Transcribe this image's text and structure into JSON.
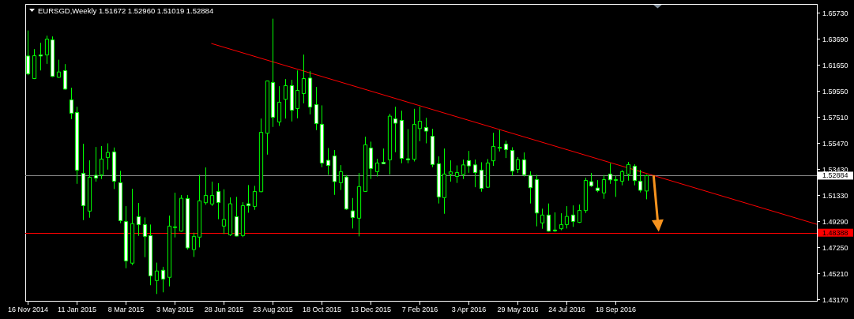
{
  "chart_data": {
    "type": "candlestick",
    "title": "EURSGD,Weekly 1.51672 1.52960 1.51019 1.52884",
    "x": [
      "2014-11-16",
      "2014-11-23",
      "2014-11-30",
      "2014-12-07",
      "2014-12-14",
      "2014-12-21",
      "2014-12-28",
      "2015-01-04",
      "2015-01-11",
      "2015-01-18",
      "2015-01-25",
      "2015-02-01",
      "2015-02-08",
      "2015-02-15",
      "2015-02-22",
      "2015-03-01",
      "2015-03-08",
      "2015-03-15",
      "2015-03-22",
      "2015-03-29",
      "2015-04-05",
      "2015-04-12",
      "2015-04-19",
      "2015-04-26",
      "2015-05-03",
      "2015-05-10",
      "2015-05-17",
      "2015-05-24",
      "2015-05-31",
      "2015-06-07",
      "2015-06-14",
      "2015-06-21",
      "2015-06-28",
      "2015-07-05",
      "2015-07-12",
      "2015-07-19",
      "2015-07-26",
      "2015-08-02",
      "2015-08-09",
      "2015-08-16",
      "2015-08-23",
      "2015-08-30",
      "2015-09-06",
      "2015-09-13",
      "2015-09-20",
      "2015-09-27",
      "2015-10-04",
      "2015-10-11",
      "2015-10-18",
      "2015-10-25",
      "2015-11-01",
      "2015-11-08",
      "2015-11-15",
      "2015-11-22",
      "2015-11-29",
      "2015-12-06",
      "2015-12-13",
      "2015-12-20",
      "2015-12-27",
      "2016-01-03",
      "2016-01-10",
      "2016-01-17",
      "2016-01-24",
      "2016-01-31",
      "2016-02-07",
      "2016-02-14",
      "2016-02-21",
      "2016-02-28",
      "2016-03-06",
      "2016-03-13",
      "2016-03-20",
      "2016-03-27",
      "2016-04-03",
      "2016-04-10",
      "2016-04-17",
      "2016-04-24",
      "2016-05-01",
      "2016-05-08",
      "2016-05-15",
      "2016-05-22",
      "2016-05-29",
      "2016-06-05",
      "2016-06-12",
      "2016-06-19",
      "2016-06-26",
      "2016-07-03",
      "2016-07-10",
      "2016-07-17",
      "2016-07-24",
      "2016-07-31",
      "2016-08-07",
      "2016-08-14",
      "2016-08-21",
      "2016-08-28",
      "2016-09-04",
      "2016-09-11",
      "2016-09-18",
      "2016-09-25",
      "2016-10-02",
      "2016-10-09",
      "2016-10-16",
      "2016-10-23"
    ],
    "ohlc": [
      [
        1.6231,
        1.6432,
        1.608,
        1.609
      ],
      [
        1.6053,
        1.6285,
        1.6049,
        1.6233
      ],
      [
        1.6239,
        1.6335,
        1.6117,
        1.6231
      ],
      [
        1.6239,
        1.6391,
        1.6169,
        1.6364
      ],
      [
        1.6358,
        1.6385,
        1.6065,
        1.607
      ],
      [
        1.6063,
        1.6202,
        1.6059,
        1.6105
      ],
      [
        1.6115,
        1.6167,
        1.5966,
        1.597
      ],
      [
        1.5885,
        1.5981,
        1.5734,
        1.578
      ],
      [
        1.5786,
        1.5831,
        1.5224,
        1.5332
      ],
      [
        1.5307,
        1.5539,
        1.4938,
        1.5052
      ],
      [
        1.5009,
        1.5409,
        1.4957,
        1.5276
      ],
      [
        1.5291,
        1.5514,
        1.5241,
        1.527
      ],
      [
        1.5293,
        1.5521,
        1.5262,
        1.5419
      ],
      [
        1.5432,
        1.5543,
        1.5336,
        1.5471
      ],
      [
        1.5475,
        1.551,
        1.5183,
        1.5245
      ],
      [
        1.5233,
        1.5326,
        1.4914,
        1.4934
      ],
      [
        1.4926,
        1.5048,
        1.4559,
        1.4617
      ],
      [
        1.4599,
        1.5185,
        1.4584,
        1.491
      ],
      [
        1.4965,
        1.5073,
        1.4814,
        1.4903
      ],
      [
        1.4903,
        1.4959,
        1.4646,
        1.481
      ],
      [
        1.4816,
        1.4903,
        1.4425,
        1.4499
      ],
      [
        1.4462,
        1.4603,
        1.4356,
        1.4537
      ],
      [
        1.4543,
        1.457,
        1.4369,
        1.4474
      ],
      [
        1.4487,
        1.4974,
        1.4416,
        1.4891
      ],
      [
        1.488,
        1.5154,
        1.4802,
        1.4885
      ],
      [
        1.4851,
        1.5135,
        1.4847,
        1.511
      ],
      [
        1.5108,
        1.5135,
        1.4706,
        1.4719
      ],
      [
        1.4706,
        1.4839,
        1.4648,
        1.481
      ],
      [
        1.4804,
        1.5295,
        1.4723,
        1.509
      ],
      [
        1.5075,
        1.5353,
        1.5059,
        1.5133
      ],
      [
        1.5065,
        1.5241,
        1.505,
        1.5133
      ],
      [
        1.5164,
        1.5229,
        1.4945,
        1.5077
      ],
      [
        1.4891,
        1.5181,
        1.4829,
        1.4943
      ],
      [
        1.4822,
        1.5117,
        1.4812,
        1.5067
      ],
      [
        1.4965,
        1.5121,
        1.481,
        1.4812
      ],
      [
        1.4816,
        1.5079,
        1.4804,
        1.5052
      ],
      [
        1.5067,
        1.5214,
        1.4996,
        1.5052
      ],
      [
        1.5046,
        1.5208,
        1.5019,
        1.5164
      ],
      [
        1.5162,
        1.5738,
        1.5158,
        1.563
      ],
      [
        1.5622,
        1.6036,
        1.5454,
        1.6034
      ],
      [
        1.6022,
        1.6525,
        1.5672,
        1.5749
      ],
      [
        1.5711,
        1.5993,
        1.568,
        1.5867
      ],
      [
        1.5889,
        1.6049,
        1.5738,
        1.5997
      ],
      [
        1.5997,
        1.6043,
        1.5715,
        1.5804
      ],
      [
        1.5817,
        1.6117,
        1.574,
        1.596
      ],
      [
        1.5935,
        1.6242,
        1.5858,
        1.6053
      ],
      [
        1.6057,
        1.6111,
        1.5771,
        1.5829
      ],
      [
        1.5848,
        1.5987,
        1.5647,
        1.5699
      ],
      [
        1.5693,
        1.5842,
        1.5355,
        1.5388
      ],
      [
        1.5409,
        1.5506,
        1.5295,
        1.5369
      ],
      [
        1.5444,
        1.549,
        1.5137,
        1.5241
      ],
      [
        1.5233,
        1.5371,
        1.5175,
        1.532
      ],
      [
        1.5278,
        1.5293,
        1.5019,
        1.5025
      ],
      [
        1.5011,
        1.5112,
        1.4872,
        1.4959
      ],
      [
        1.4953,
        1.5309,
        1.481,
        1.5202
      ],
      [
        1.5164,
        1.5595,
        1.5162,
        1.5531
      ],
      [
        1.5506,
        1.5556,
        1.5262,
        1.5345
      ],
      [
        1.532,
        1.5421,
        1.5282,
        1.5388
      ],
      [
        1.5394,
        1.5502,
        1.5382,
        1.5382
      ],
      [
        1.5413,
        1.5775,
        1.5297,
        1.5757
      ],
      [
        1.5736,
        1.5831,
        1.5473,
        1.5701
      ],
      [
        1.5724,
        1.58,
        1.5386,
        1.5425
      ],
      [
        1.5421,
        1.5655,
        1.5386,
        1.5413
      ],
      [
        1.5417,
        1.5815,
        1.54,
        1.5693
      ],
      [
        1.5659,
        1.5831,
        1.556,
        1.5717
      ],
      [
        1.5668,
        1.5744,
        1.5543,
        1.5639
      ],
      [
        1.5599,
        1.5657,
        1.5355,
        1.5376
      ],
      [
        1.5382,
        1.544,
        1.5069,
        1.5121
      ],
      [
        1.5115,
        1.5502,
        1.4988,
        1.5301
      ],
      [
        1.5299,
        1.5409,
        1.5241,
        1.5318
      ],
      [
        1.5282,
        1.5369,
        1.5231,
        1.5313
      ],
      [
        1.5297,
        1.5415,
        1.5262,
        1.5373
      ],
      [
        1.5407,
        1.5483,
        1.5311,
        1.5365
      ],
      [
        1.5373,
        1.5415,
        1.5197,
        1.5313
      ],
      [
        1.5332,
        1.5394,
        1.5162,
        1.5187
      ],
      [
        1.5197,
        1.5419,
        1.5191,
        1.5388
      ],
      [
        1.5405,
        1.5626,
        1.5365,
        1.5519
      ],
      [
        1.5504,
        1.5649,
        1.5479,
        1.5512
      ],
      [
        1.5537,
        1.5564,
        1.5427,
        1.5494
      ],
      [
        1.5487,
        1.5512,
        1.5287,
        1.5324
      ],
      [
        1.5338,
        1.5434,
        1.5309,
        1.5415
      ],
      [
        1.5413,
        1.5471,
        1.5282,
        1.5295
      ],
      [
        1.5291,
        1.5322,
        1.5069,
        1.5193
      ],
      [
        1.5257,
        1.5295,
        1.4889,
        1.4994
      ],
      [
        1.4916,
        1.5028,
        1.487,
        1.4978
      ],
      [
        1.4978,
        1.5069,
        1.4847,
        1.4851
      ],
      [
        1.486,
        1.4999,
        1.4845,
        1.4854
      ],
      [
        1.487,
        1.4992,
        1.4858,
        1.4903
      ],
      [
        1.4903,
        1.5048,
        1.4872,
        1.4967
      ],
      [
        1.4978,
        1.5054,
        1.4885,
        1.4928
      ],
      [
        1.492,
        1.5061,
        1.4916,
        1.5015
      ],
      [
        1.5013,
        1.5272,
        1.4994,
        1.5251
      ],
      [
        1.5241,
        1.5309,
        1.5199,
        1.5208
      ],
      [
        1.5191,
        1.5253,
        1.5158,
        1.5171
      ],
      [
        1.5152,
        1.5293,
        1.5106,
        1.5257
      ],
      [
        1.5301,
        1.5386,
        1.5224,
        1.5255
      ],
      [
        1.5253,
        1.5287,
        1.5121,
        1.5257
      ],
      [
        1.5245,
        1.5332,
        1.5212,
        1.532
      ],
      [
        1.5299,
        1.5396,
        1.5249,
        1.5376
      ],
      [
        1.5363,
        1.5378,
        1.5212,
        1.5249
      ],
      [
        1.5245,
        1.5334,
        1.5156,
        1.5173
      ],
      [
        1.51672,
        1.5296,
        1.51019,
        1.52884
      ]
    ],
    "color": "#00ff00",
    "colors": [
      "#ffffff",
      "#000000",
      "#ffffff",
      "#000000",
      "#ffffff",
      "#000000",
      "#ffffff",
      "#ffffff",
      "#ffffff",
      "#ffffff",
      "#000000",
      "#ffffff",
      "#000000",
      "#000000",
      "#ffffff",
      "#ffffff",
      "#ffffff",
      "#000000",
      "#ffffff",
      "#ffffff",
      "#ffffff",
      "#000000",
      "#ffffff",
      "#000000",
      "#000000",
      "#000000",
      "#ffffff",
      "#000000",
      "#000000",
      "#000000",
      "#000000",
      "#ffffff",
      "#000000",
      "#000000",
      "#ffffff",
      "#000000",
      "#ffffff",
      "#000000",
      "#000000",
      "#000000",
      "#ffffff",
      "#000000",
      "#000000",
      "#ffffff",
      "#000000",
      "#000000",
      "#ffffff",
      "#ffffff",
      "#ffffff",
      "#ffffff",
      "#ffffff",
      "#000000",
      "#ffffff",
      "#ffffff",
      "#000000",
      "#000000",
      "#ffffff",
      "#000000",
      "#ffffff",
      "#000000",
      "#ffffff",
      "#ffffff",
      "#ffffff",
      "#000000",
      "#000000",
      "#ffffff",
      "#ffffff",
      "#ffffff",
      "#000000",
      "#000000",
      "#000000",
      "#000000",
      "#ffffff",
      "#ffffff",
      "#ffffff",
      "#000000",
      "#000000",
      "#000000",
      "#ffffff",
      "#ffffff",
      "#000000",
      "#ffffff",
      "#ffffff",
      "#ffffff",
      "#000000",
      "#ffffff",
      "#ffffff",
      "#000000",
      "#000000",
      "#ffffff",
      "#000000",
      "#000000",
      "#ffffff",
      "#ffffff",
      "#000000",
      "#ffffff",
      "#000000",
      "#000000",
      "#000000",
      "#ffffff",
      "#ffffff",
      "#000000"
    ],
    "series": [
      {
        "type": "line",
        "color": "#ff0000",
        "x": [
          "2015-06-14",
          "2017-05-06"
        ],
        "values": [
          1.6329,
          1.4905
        ]
      }
    ],
    "xlim": [
      "2014-11-13",
      "2017-05-06"
    ],
    "xticks": [
      {
        "value": "2014-11-16",
        "label": "16 Nov 2014"
      },
      {
        "value": "2015-01-11",
        "label": "11 Jan 2015"
      },
      {
        "value": "2015-03-08",
        "label": "8 Mar 2015"
      },
      {
        "value": "2015-05-03",
        "label": "3 May 2015"
      },
      {
        "value": "2015-06-28",
        "label": "28 Jun 2015"
      },
      {
        "value": "2015-08-23",
        "label": "23 Aug 2015"
      },
      {
        "value": "2015-10-18",
        "label": "18 Oct 2015"
      },
      {
        "value": "2015-12-13",
        "label": "13 Dec 2015"
      },
      {
        "value": "2016-02-07",
        "label": "7 Feb 2016"
      },
      {
        "value": "2016-04-03",
        "label": "3 Apr 2016"
      },
      {
        "value": "2016-05-29",
        "label": "29 May 2016"
      },
      {
        "value": "2016-07-24",
        "label": "24 Jul 2016"
      },
      {
        "value": "2016-09-18",
        "label": "18 Sep 2016"
      }
    ],
    "ylim": [
      1.4302,
      1.6641
    ],
    "yticks": [
      {
        "value": 1.6573,
        "label": "1.65730"
      },
      {
        "value": 1.6369,
        "label": "1.63690"
      },
      {
        "value": 1.6165,
        "label": "1.61650"
      },
      {
        "value": 1.5955,
        "label": "1.59550"
      },
      {
        "value": 1.5751,
        "label": "1.57510"
      },
      {
        "value": 1.5547,
        "label": "1.55470"
      },
      {
        "value": 1.5343,
        "label": "1.53430"
      },
      {
        "value": 1.5133,
        "label": "1.51330"
      },
      {
        "value": 1.4929,
        "label": "1.49290"
      },
      {
        "value": 1.4725,
        "label": "1.47250"
      },
      {
        "value": 1.4521,
        "label": "1.45210"
      },
      {
        "value": 1.4317,
        "label": "1.43170"
      }
    ],
    "ref_lines": [
      {
        "axis": "y",
        "value": 1.52884,
        "label": "1.52884",
        "color": "#8c8c8c"
      },
      {
        "axis": "y",
        "value": 1.48388,
        "label": "1.48388",
        "color": "#ff0000"
      }
    ]
  }
}
